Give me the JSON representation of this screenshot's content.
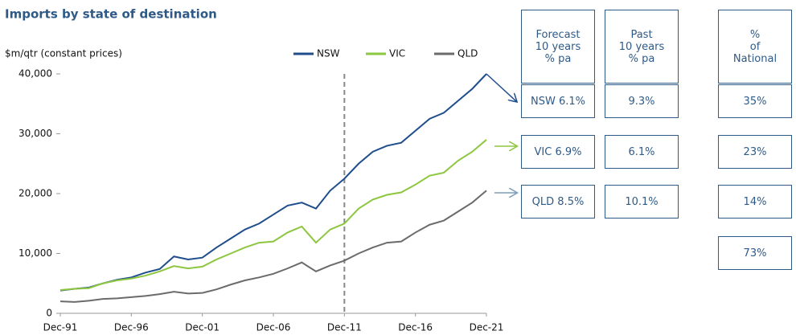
{
  "chart_data": {
    "type": "line",
    "title": "Imports by state of destination",
    "y_label": "$m/qtr (constant prices)",
    "categories": [
      "Dec-91",
      null,
      null,
      null,
      null,
      "Dec-96",
      null,
      null,
      null,
      null,
      "Dec-01",
      null,
      null,
      null,
      null,
      "Dec-06",
      null,
      null,
      null,
      null,
      "Dec-11",
      null,
      null,
      null,
      null,
      "Dec-16",
      null,
      null,
      null,
      null,
      "Dec-21"
    ],
    "series": [
      {
        "name": "NSW",
        "color": "#1f4e8c",
        "values": [
          3800,
          4100,
          4300,
          5000,
          5600,
          6000,
          6800,
          7400,
          9500,
          9000,
          9300,
          11000,
          12500,
          14000,
          15000,
          16500,
          18000,
          18500,
          17500,
          20500,
          22500,
          25000,
          27000,
          28000,
          28500,
          30500,
          32500,
          33500,
          35500,
          37500,
          40000
        ]
      },
      {
        "name": "VIC",
        "color": "#8dc63f",
        "values": [
          3900,
          4100,
          4200,
          5000,
          5500,
          5800,
          6300,
          7000,
          7900,
          7500,
          7800,
          9000,
          10000,
          11000,
          11800,
          12000,
          13500,
          14500,
          11800,
          14000,
          15000,
          17500,
          19000,
          19800,
          20200,
          21500,
          23000,
          23500,
          25500,
          27000,
          29000
        ]
      },
      {
        "name": "QLD",
        "color": "#6b6b6b",
        "values": [
          2000,
          1900,
          2100,
          2400,
          2500,
          2700,
          2900,
          3200,
          3600,
          3300,
          3400,
          4000,
          4800,
          5500,
          6000,
          6600,
          7500,
          8500,
          7000,
          8000,
          8800,
          10000,
          11000,
          11800,
          12000,
          13500,
          14800,
          15500,
          17000,
          18500,
          20500
        ]
      }
    ],
    "ylim": [
      0,
      40000
    ],
    "yticks": [
      0,
      {
        "value": 10000,
        "label": "10,000"
      },
      {
        "value": 20000,
        "label": "20,000"
      },
      {
        "value": 30000,
        "label": "30,000"
      },
      {
        "value": 40000,
        "label": "40,000"
      }
    ],
    "divider_at": "Dec-11",
    "grid": false,
    "legend": "top"
  },
  "table": {
    "header": [
      [
        "Forecast",
        "10 years",
        "% pa"
      ],
      [
        "Past",
        "10 years",
        "% pa"
      ],
      [
        "%",
        "of",
        "National"
      ]
    ],
    "rows": [
      [
        "NSW 6.1%",
        "9.3%",
        "35%"
      ],
      [
        "VIC 6.9%",
        "6.1%",
        "23%"
      ],
      [
        "QLD 8.5%",
        "10.1%",
        "14%"
      ],
      [
        null,
        null,
        "73%"
      ]
    ]
  }
}
